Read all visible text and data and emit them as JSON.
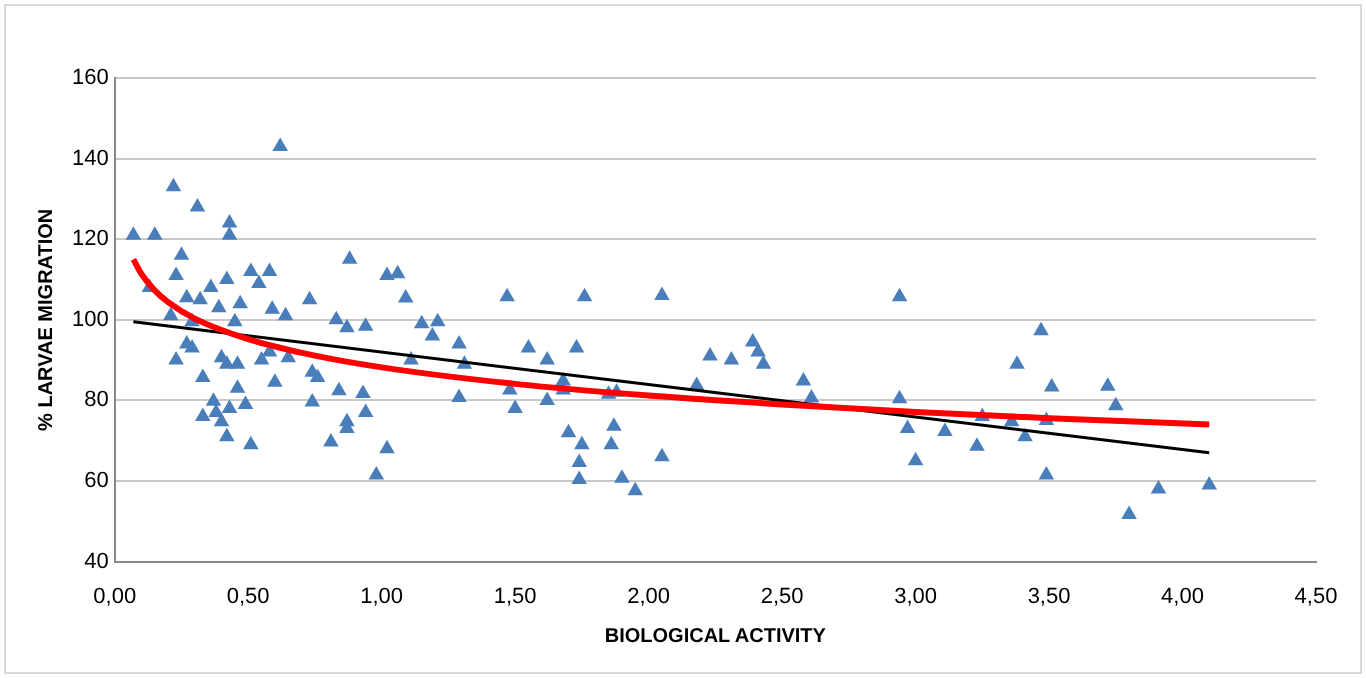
{
  "chart_data": {
    "type": "scatter",
    "xlabel": "BIOLOGICAL ACTIVITY",
    "ylabel": "% LARVAE MIGRATION",
    "xlim": [
      0,
      4.5
    ],
    "xticks": [
      {
        "value": 0,
        "label": "0,00"
      },
      {
        "value": 0.5,
        "label": "0,50"
      },
      {
        "value": 1,
        "label": "1,00"
      },
      {
        "value": 1.5,
        "label": "1,50"
      },
      {
        "value": 2,
        "label": "2,00"
      },
      {
        "value": 2.5,
        "label": "2,50"
      },
      {
        "value": 3,
        "label": "3,00"
      },
      {
        "value": 3.5,
        "label": "3,50"
      },
      {
        "value": 4,
        "label": "4,00"
      },
      {
        "value": 4.5,
        "label": "4,50"
      }
    ],
    "ylim": [
      40,
      160
    ],
    "yticks": [
      40,
      60,
      80,
      100,
      120,
      140,
      160
    ],
    "grid": "y",
    "legend": false,
    "series": [
      {
        "type": "scatter",
        "marker": "triangle",
        "color": "#4a7ebb",
        "x": [
          0.07,
          0.15,
          0.22,
          0.31,
          0.43,
          0.43,
          0.62,
          0.25,
          0.23,
          0.13,
          0.27,
          0.32,
          0.36,
          0.42,
          0.51,
          0.58,
          0.54,
          0.21,
          0.29,
          0.39,
          0.47,
          0.45,
          0.59,
          0.64,
          0.27,
          0.29,
          0.23,
          0.4,
          0.42,
          0.46,
          0.55,
          0.58,
          0.65,
          0.33,
          0.46,
          0.6,
          0.37,
          0.33,
          0.38,
          0.43,
          0.49,
          0.4,
          0.42,
          0.51,
          0.73,
          0.88,
          0.83,
          0.87,
          0.94,
          1.02,
          1.06,
          1.09,
          1.15,
          1.21,
          1.19,
          1.29,
          1.31,
          1.47,
          0.74,
          0.76,
          0.84,
          0.93,
          0.74,
          0.87,
          0.87,
          0.94,
          0.81,
          1.02,
          0.98,
          1.29,
          1.48,
          1.5,
          1.11,
          1.76,
          2.05,
          2.94,
          1.55,
          1.62,
          1.73,
          1.62,
          1.68,
          1.68,
          1.7,
          1.75,
          1.74,
          1.74,
          1.86,
          1.87,
          1.85,
          1.88,
          1.9,
          1.95,
          2.05,
          2.18,
          2.23,
          2.31,
          2.39,
          2.41,
          2.43,
          2.58,
          2.61,
          2.94,
          2.97,
          3.0,
          3.11,
          3.23,
          3.25,
          3.36,
          3.41,
          3.38,
          3.47,
          3.51,
          3.49,
          3.49,
          3.72,
          3.75,
          3.8,
          3.91,
          4.1
        ],
        "values": [
          121,
          121,
          133,
          128,
          124,
          121,
          143,
          116,
          111,
          108,
          105.5,
          105,
          108,
          110,
          112,
          112,
          109,
          101,
          99.5,
          103,
          104,
          99.5,
          102.6,
          101,
          94,
          93,
          90,
          90.6,
          89,
          89,
          90,
          92,
          90.6,
          85.7,
          83,
          84.5,
          79.8,
          76,
          77,
          78,
          79,
          74.7,
          71,
          69,
          105,
          115,
          100,
          98,
          98.4,
          111,
          111.4,
          105.4,
          99,
          99.5,
          96,
          94,
          89,
          105.7,
          87,
          85.7,
          82.4,
          81.7,
          79.6,
          74.7,
          73,
          77,
          69.7,
          68,
          61.5,
          80.7,
          82.6,
          78,
          90,
          105.7,
          106,
          105.7,
          93,
          90,
          93,
          80,
          82.6,
          84.8,
          72,
          69,
          64.6,
          60.4,
          69,
          73.6,
          81.5,
          82,
          60.7,
          57.6,
          66,
          83.7,
          91,
          90,
          94.5,
          92,
          89,
          84.8,
          80.6,
          80.4,
          73,
          65,
          72.3,
          68.6,
          76,
          74.7,
          71,
          89,
          97.3,
          83.3,
          75,
          61.5,
          83.5,
          78.7,
          51.7,
          58,
          59
        ]
      },
      {
        "type": "line",
        "marker": "none",
        "color": "#ff0000",
        "x": [
          0.07,
          0.1,
          0.15,
          0.2,
          0.3,
          0.5,
          0.75,
          1,
          1.5,
          2,
          2.5,
          3,
          3.5,
          4.1
        ],
        "values": [
          115,
          111.4,
          107.3,
          104.4,
          100.3,
          95.2,
          91.1,
          88.2,
          84.1,
          81.2,
          79,
          77.1,
          75.6,
          74
        ]
      },
      {
        "type": "line",
        "marker": "none",
        "color": "#000000",
        "x": [
          0.07,
          4.1
        ],
        "values": [
          99.5,
          67
        ]
      }
    ]
  }
}
